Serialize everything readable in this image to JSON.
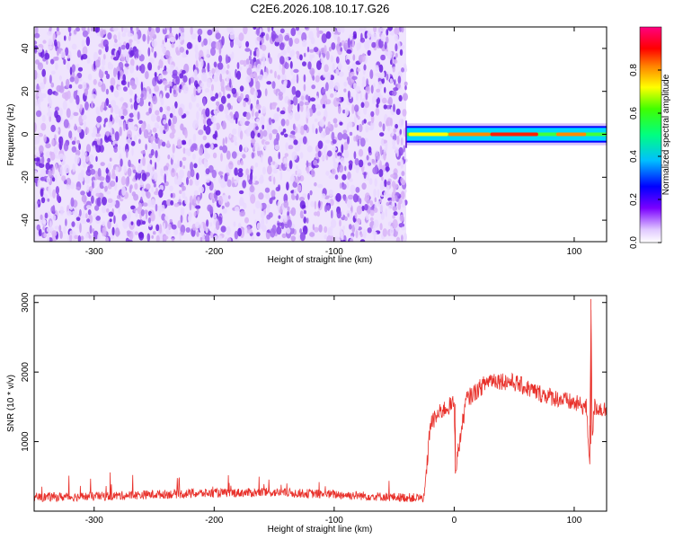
{
  "title": "C2E6.2026.108.10.17.G26",
  "chart_data": [
    {
      "type": "heatmap",
      "xlabel": "Height of straight line (km)",
      "ylabel": "Frequency (Hz)",
      "xlim": [
        -350,
        127
      ],
      "ylim": [
        -50,
        50
      ],
      "x_ticks": [
        -300,
        -200,
        -100,
        0,
        100
      ],
      "x_tick_labels": [
        "-300",
        "-200",
        "-100",
        "0",
        "100"
      ],
      "y_ticks": [
        -40,
        -20,
        0,
        20,
        40
      ],
      "y_tick_labels": [
        "-40",
        "-20",
        "0",
        "20",
        "40"
      ],
      "grid": false,
      "noise_region_x": [
        -350,
        -40
      ],
      "signal_region_x": [
        -40,
        127
      ],
      "signal_band_freq": [
        -3,
        3
      ],
      "signal_strong_spans": [
        {
          "x": [
            30,
            70
          ],
          "level": 0.95
        },
        {
          "x": [
            85,
            110
          ],
          "level": 0.9
        },
        {
          "x": [
            -5,
            30
          ],
          "level": 0.75
        },
        {
          "x": [
            -38,
            -5
          ],
          "level": 0.55
        }
      ],
      "colorbar": {
        "label": "Normalized spectral amplitude",
        "range": [
          0,
          1
        ],
        "ticks": [
          0.0,
          0.2,
          0.4,
          0.6,
          0.8
        ],
        "tick_labels": [
          "0.0",
          "0.2",
          "0.4",
          "0.6",
          "0.8"
        ],
        "colormap": "rainbow"
      },
      "colors": {
        "noise_light": "#d8b4f8",
        "noise_dark": "#6a1ee0"
      }
    },
    {
      "type": "line",
      "xlabel": "Height of straight line (km)",
      "ylabel": "SNR (10 * v/v)",
      "xlim": [
        -350,
        127
      ],
      "ylim": [
        0,
        3100
      ],
      "x_ticks": [
        -300,
        -200,
        -100,
        0,
        100
      ],
      "x_tick_labels": [
        "-300",
        "-200",
        "-100",
        "0",
        "100"
      ],
      "y_ticks": [
        1000,
        2000,
        3000
      ],
      "y_tick_labels": [
        "1000",
        "2000",
        "3000"
      ],
      "grid": false,
      "series": [
        {
          "color": "#e8302a",
          "x": [
            -350,
            -300,
            -250,
            -200,
            -150,
            -100,
            -50,
            -25,
            -22,
            -20,
            -10,
            0,
            1,
            10,
            20,
            30,
            50,
            70,
            90,
            100,
            110,
            113,
            114,
            115,
            117,
            127
          ],
          "y": [
            200,
            210,
            240,
            260,
            270,
            240,
            200,
            190,
            800,
            1250,
            1450,
            1550,
            600,
            1600,
            1750,
            1900,
            1850,
            1700,
            1600,
            1550,
            1500,
            700,
            3050,
            1100,
            1500,
            1450
          ]
        }
      ]
    }
  ]
}
